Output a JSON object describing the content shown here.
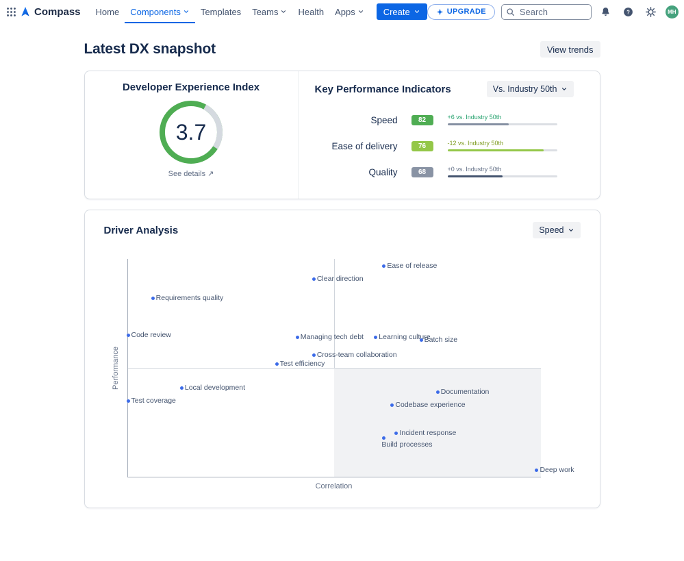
{
  "nav": {
    "logo_text": "Compass",
    "items": [
      {
        "label": "Home"
      },
      {
        "label": "Components"
      },
      {
        "label": "Templates"
      },
      {
        "label": "Teams"
      },
      {
        "label": "Health"
      },
      {
        "label": "Apps"
      }
    ],
    "create_label": "Create",
    "upgrade_label": "UPGRADE",
    "search_placeholder": "Search",
    "avatar_initials": "MH"
  },
  "page": {
    "title": "Latest DX snapshot",
    "view_trends_label": "View trends"
  },
  "dx_index": {
    "title": "Developer Experience Index",
    "score": "3.7",
    "score_max": 5,
    "gauge_color": "#4FAD53",
    "gauge_track_color": "#D5DAE0",
    "see_details_label": "See details",
    "see_details_icon": "↗"
  },
  "kpis": {
    "title": "Key Performance Indicators",
    "benchmark_label": "Vs. Industry 50th",
    "rows": [
      {
        "label": "Speed",
        "score": "82",
        "badge_bg": "#4FAD53",
        "badge_fg": "#FFFFFF",
        "delta": "+6 vs. Industry 50th",
        "delta_color": "#22A06B",
        "bar_color": "#8590A2",
        "bar_pct": 56
      },
      {
        "label": "Ease of delivery",
        "score": "76",
        "badge_bg": "#94C748",
        "badge_fg": "#FFFFFF",
        "delta": "-12 vs. Industry 50th",
        "delta_color": "#7C9A1E",
        "bar_color": "#94C748",
        "bar_pct": 88
      },
      {
        "label": "Quality",
        "score": "68",
        "badge_bg": "#8993A4",
        "badge_fg": "#FFFFFF",
        "delta": "+0 vs. Industry 50th",
        "delta_color": "#626F86",
        "bar_color": "#44546F",
        "bar_pct": 50
      }
    ]
  },
  "driver": {
    "title": "Driver Analysis",
    "filter_label": "Speed"
  },
  "chart_data": {
    "type": "scatter",
    "title": "Driver Analysis",
    "xlabel": "Correlation",
    "ylabel": "Performance",
    "xlim": [
      0,
      100
    ],
    "ylim": [
      0,
      100
    ],
    "grid": false,
    "legend": "none",
    "point_color": "#3C6BE8",
    "quadrant_lines": {
      "x": 50,
      "y": 50
    },
    "points": [
      {
        "label": "Ease of release",
        "x": 62,
        "y": 97
      },
      {
        "label": "Clear direction",
        "x": 45,
        "y": 91
      },
      {
        "label": "Requirements quality",
        "x": 6,
        "y": 82
      },
      {
        "label": "Code review",
        "x": 0,
        "y": 65
      },
      {
        "label": "Managing tech debt",
        "x": 41,
        "y": 64
      },
      {
        "label": "Learning culture",
        "x": 60,
        "y": 64
      },
      {
        "label": "Batch size",
        "x": 71,
        "y": 63
      },
      {
        "label": "Cross-team collaboration",
        "x": 45,
        "y": 56
      },
      {
        "label": "Test efficiency",
        "x": 36,
        "y": 52
      },
      {
        "label": "Local development",
        "x": 13,
        "y": 41
      },
      {
        "label": "Test coverage",
        "x": 0,
        "y": 35
      },
      {
        "label": "Documentation",
        "x": 75,
        "y": 39
      },
      {
        "label": "Codebase experience",
        "x": 64,
        "y": 33
      },
      {
        "label": "Incident response",
        "x": 65,
        "y": 20
      },
      {
        "label": "Build processes",
        "x": 62,
        "y": 18,
        "label_position": "below"
      },
      {
        "label": "Deep work",
        "x": 99,
        "y": 3
      }
    ]
  }
}
